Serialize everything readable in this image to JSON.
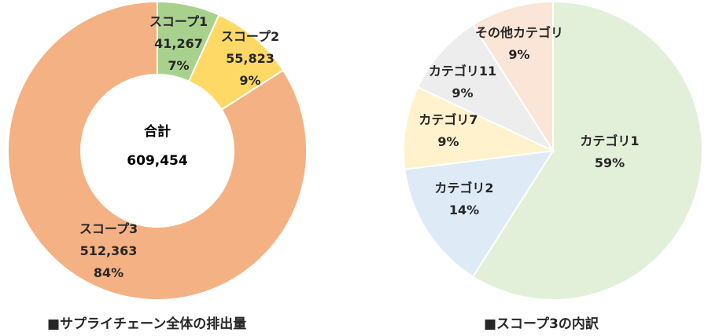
{
  "chart_data": [
    {
      "type": "pie",
      "donut": true,
      "title": "■サプライチェーン全体の排出量",
      "center": {
        "label": "合計",
        "value": "609,454"
      },
      "slices": [
        {
          "name": "スコープ1",
          "value": 41267,
          "value_text": "41,267",
          "percent_text": "7%",
          "color": "#a9d18e"
        },
        {
          "name": "スコープ2",
          "value": 55823,
          "value_text": "55,823",
          "percent_text": "9%",
          "color": "#ffd966"
        },
        {
          "name": "スコープ3",
          "value": 512363,
          "value_text": "512,363",
          "percent_text": "84%",
          "color": "#f4b183"
        }
      ]
    },
    {
      "type": "pie",
      "donut": false,
      "title": "■スコープ3の内訳",
      "slices": [
        {
          "name": "カテゴリ1",
          "value": 59,
          "percent_text": "59%",
          "color": "#e2f0d9"
        },
        {
          "name": "カテゴリ2",
          "value": 14,
          "percent_text": "14%",
          "color": "#deebf7"
        },
        {
          "name": "カテゴリ7",
          "value": 9,
          "percent_text": "9%",
          "color": "#fff2cc"
        },
        {
          "name": "カテゴリ11",
          "value": 9,
          "percent_text": "9%",
          "color": "#ededed"
        },
        {
          "name": "その他カテゴリ",
          "value": 9,
          "percent_text": "9%",
          "color": "#fbe5d6"
        }
      ]
    }
  ]
}
